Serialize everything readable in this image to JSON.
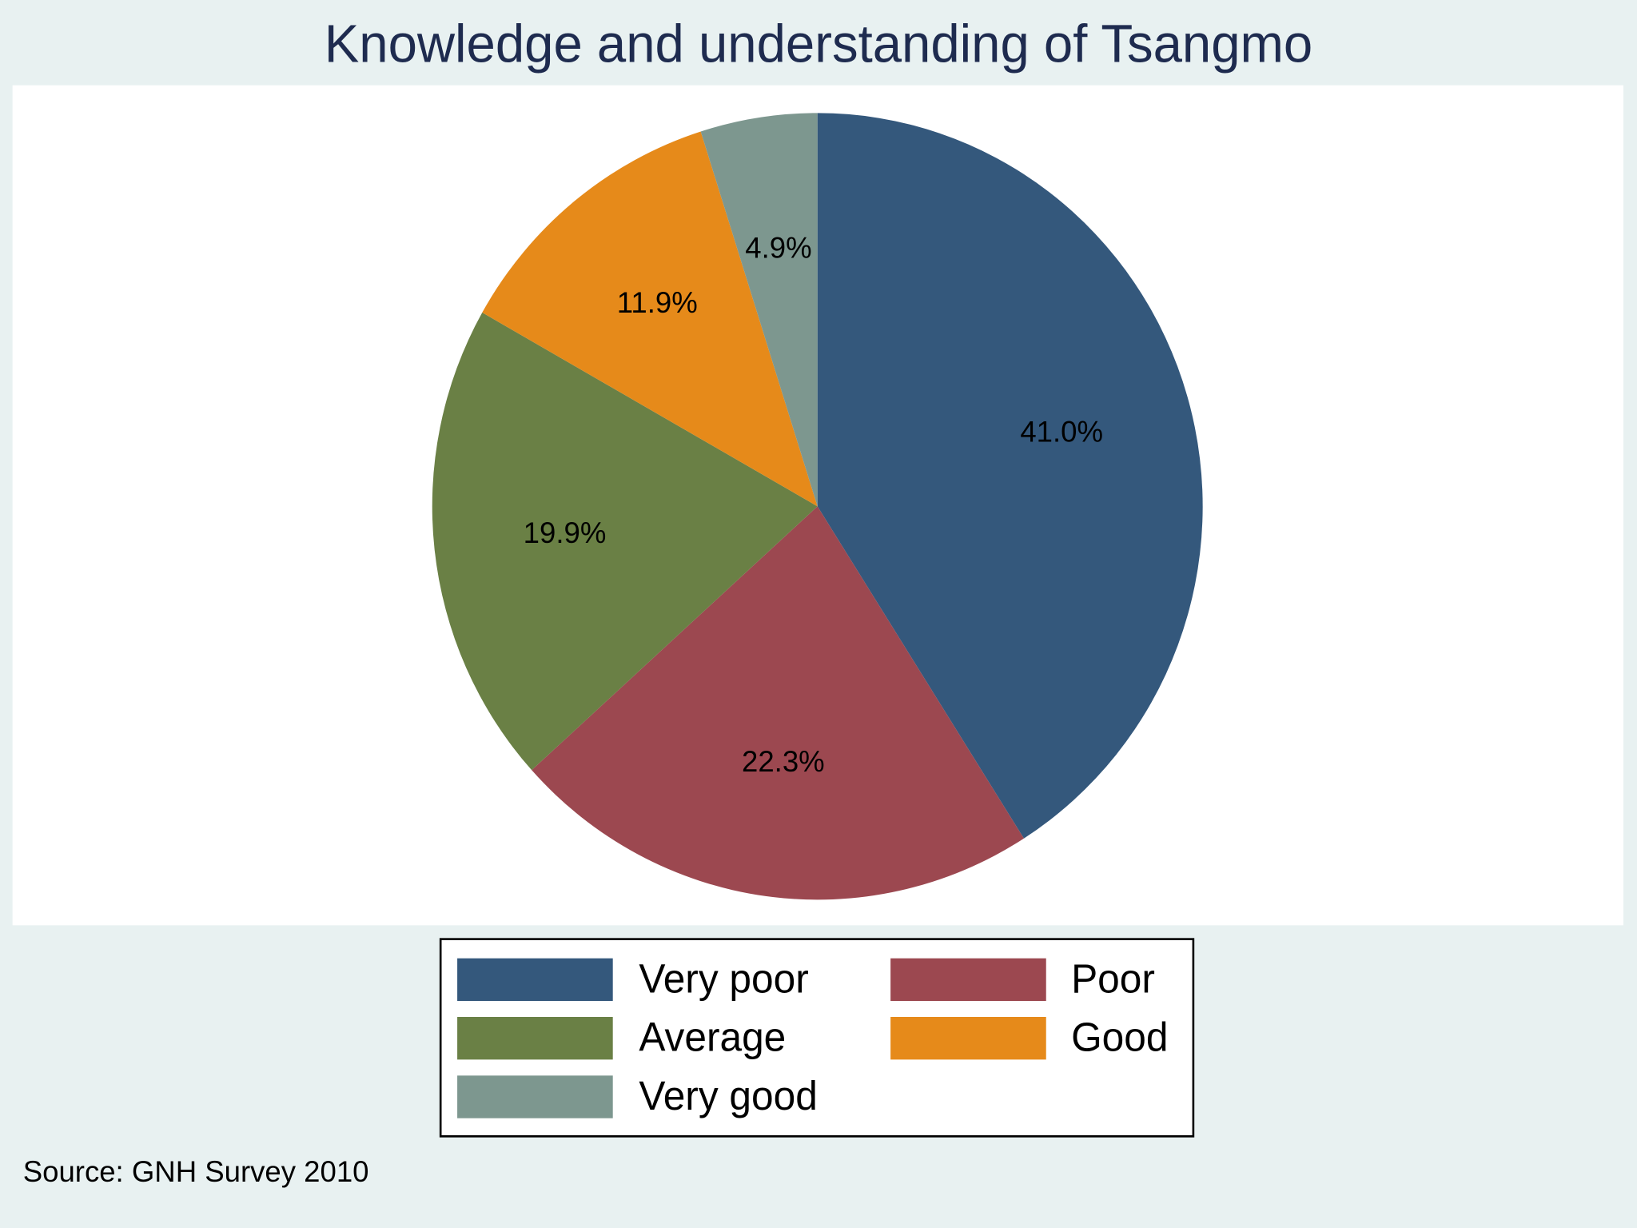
{
  "chart_data": {
    "type": "pie",
    "title": "Knowledge and understanding of Tsangmo",
    "categories": [
      "Very poor",
      "Poor",
      "Average",
      "Good",
      "Very good"
    ],
    "values": [
      41.0,
      22.3,
      19.9,
      11.9,
      4.9
    ],
    "value_labels": [
      "41.0%",
      "22.3%",
      "19.9%",
      "11.9%",
      "4.9%"
    ],
    "colors": [
      "#34587c",
      "#9c4850",
      "#6a8045",
      "#e68a1a",
      "#7d978f"
    ],
    "source": "Source: GNH Survey 2010"
  }
}
